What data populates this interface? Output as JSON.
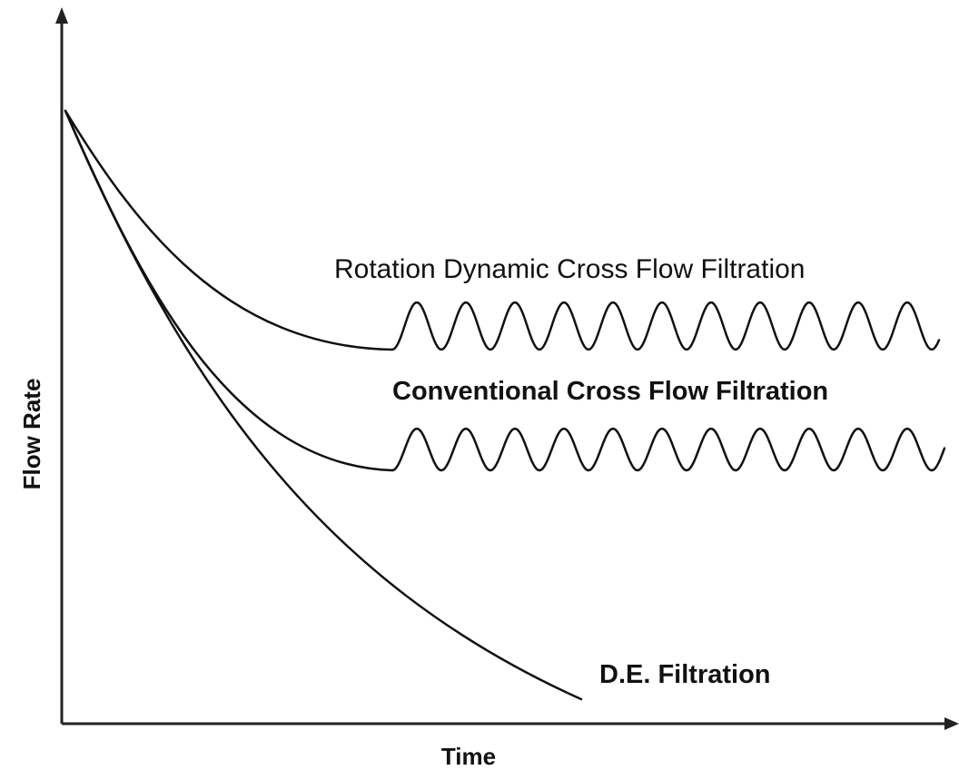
{
  "axes": {
    "x_label": "Time",
    "y_label": "Flow Rate"
  },
  "curves": [
    {
      "label": "Rotation Dynamic Cross Flow Filtration"
    },
    {
      "label": "Conventional Cross Flow Filtration"
    },
    {
      "label": "D.E. Filtration"
    }
  ]
}
